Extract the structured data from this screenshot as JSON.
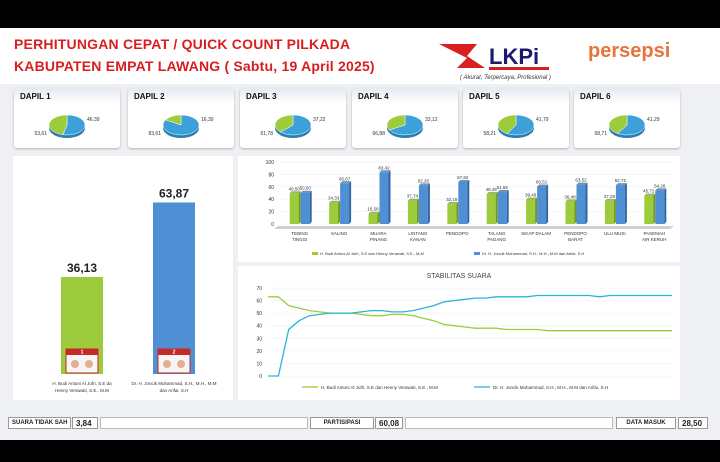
{
  "header": {
    "title_line1": "PERHITUNGAN CEPAT / QUICK COUNT PILKADA",
    "title_line2": "KABUPATEN EMPAT LAWANG ( Sabtu, 19 April 2025)",
    "lkpi_logo_text": "LKPi",
    "lkpi_tagline": "( Akurat, Terpercaya, Profesional )",
    "persepsi_logo_text": "persepsi"
  },
  "dapil": [
    {
      "label": "DAPIL 1",
      "v1": 53.61,
      "v2": 46.39,
      "l1": "53,61",
      "l2": "46,39"
    },
    {
      "label": "DAPIL 2",
      "v1": 83.61,
      "v2": 16.39,
      "l1": "83,61",
      "l2": "16,39"
    },
    {
      "label": "DAPIL 3",
      "v1": 61.78,
      "v2": 37.22,
      "l1": "61,78",
      "l2": "37,22"
    },
    {
      "label": "DAPIL 4",
      "v1": 66.88,
      "v2": 33.12,
      "l1": "66,88",
      "l2": "33,12"
    },
    {
      "label": "DAPIL 5",
      "v1": 58.21,
      "v2": 41.79,
      "l1": "58,21",
      "l2": "41,79"
    },
    {
      "label": "DAPIL 6",
      "v1": 58.71,
      "v2": 41.29,
      "l1": "58,71",
      "l2": "41,29"
    }
  ],
  "colors": {
    "green": "#9ccc3c",
    "blue": "#3ea0d8",
    "bar_blue": "#4f8fd3",
    "teal": "#29b6d6",
    "title_red": "#d81e1e"
  },
  "chart_data": [
    {
      "type": "bar",
      "categories": [
        "paslon-1",
        "paslon-2"
      ],
      "values": [
        36.13,
        63.87
      ],
      "value_labels": [
        "36,13",
        "63,87"
      ],
      "candidate_numbers": [
        "1",
        "2"
      ],
      "candidate_names": [
        "H. Budi Antoni Al Jufri, S.E dan Henny Verawati, S.E., M.M",
        "Dr. H. Joncik Muhammad, S.H., M.H., M.M dan Arifai, S.H"
      ],
      "ylim": [
        0,
        70
      ]
    },
    {
      "type": "bar",
      "categories": [
        "TEBING TINGGI",
        "SALING",
        "MUARA PINANG",
        "LINTANG KANAN",
        "PENDOPO",
        "TALANG PADANG",
        "SIKAP DALAM",
        "PENDOPO BARAT",
        "ULU MUSI",
        "PASEMAH AIR KERUH"
      ],
      "category_labels": [
        [
          "TEBING",
          "TINGGI"
        ],
        [
          "SALING"
        ],
        [
          "MUARA",
          "PINANG"
        ],
        [
          "LINTANG",
          "KANAN"
        ],
        [
          "PENDOPO"
        ],
        [
          "TALANG",
          "PADANG"
        ],
        [
          "SIKAP DALAM"
        ],
        [
          "PENDOPO",
          "BARAT"
        ],
        [
          "ULU MUSI"
        ],
        [
          "PASEMAH",
          "AIR KERUH"
        ]
      ],
      "series": [
        {
          "name": "H. Budi Antoni Al Jufri, S.E dan Henny Verawati, S.E., M.M",
          "values": [
            49.5,
            34.33,
            16.58,
            37.74,
            32.18,
            48.45,
            39.49,
            36.48,
            37.28,
            45.72
          ]
        },
        {
          "name": "Dr. H. Joncik Muhammad, S.H., M.H., M.M dan Arifai, S.H",
          "values": [
            50.5,
            65.67,
            83.42,
            62.26,
            67.82,
            51.55,
            60.51,
            63.52,
            62.72,
            54.28
          ]
        }
      ],
      "value_labels_1": [
        "49,50",
        "34,33",
        "16,58",
        "37,74",
        "32,18",
        "48,45",
        "39,49",
        "36,48",
        "37,28",
        "45,72"
      ],
      "value_labels_2": [
        "50,50",
        "65,67",
        "83,42",
        "62,26",
        "67,82",
        "51,55",
        "60,51",
        "63,52",
        "62,72",
        "54,28"
      ],
      "yticks": [
        "0",
        "20",
        "40",
        "60",
        "80",
        "100"
      ],
      "ylim": [
        0,
        100
      ]
    },
    {
      "type": "line",
      "title": "STABILITAS SUARA",
      "ylim": [
        0,
        70
      ],
      "yticks": [
        "0",
        "10",
        "20",
        "30",
        "40",
        "50",
        "60",
        "70"
      ],
      "series": [
        {
          "name": "H. Budi Antoni Al Jufri, S.E dan Henny Verawati, S.E., M.M",
          "values": [
            63,
            63,
            56,
            54,
            52,
            51,
            50,
            50,
            50,
            49,
            48,
            48,
            49,
            49,
            48,
            46,
            44,
            41,
            40,
            39,
            38,
            38,
            38,
            37,
            37,
            37,
            37,
            36,
            36,
            36,
            36,
            36,
            36,
            36,
            36,
            36,
            36,
            36,
            36,
            36
          ]
        },
        {
          "name": "Dr. H. Joncik Muhammad, S.H., M.H., M.M dan Arifai, S.H",
          "values": [
            0,
            0,
            37,
            44,
            48,
            49,
            50,
            50,
            50,
            51,
            52,
            52,
            51,
            51,
            52,
            54,
            56,
            59,
            60,
            61,
            62,
            62,
            63,
            63,
            63,
            63,
            64,
            64,
            64,
            64,
            64,
            64,
            63,
            64,
            64,
            64,
            64,
            64,
            64,
            64
          ]
        }
      ]
    }
  ],
  "footer": {
    "suara_tidak_sah_label": "SUARA TIDAK SAH",
    "suara_tidak_sah_value": "3,84",
    "partisipasi_label": "PARTISIPASI",
    "partisipasi_value": "60,08",
    "data_masuk_label": "DATA MASUK",
    "data_masuk_value": "28,50"
  }
}
